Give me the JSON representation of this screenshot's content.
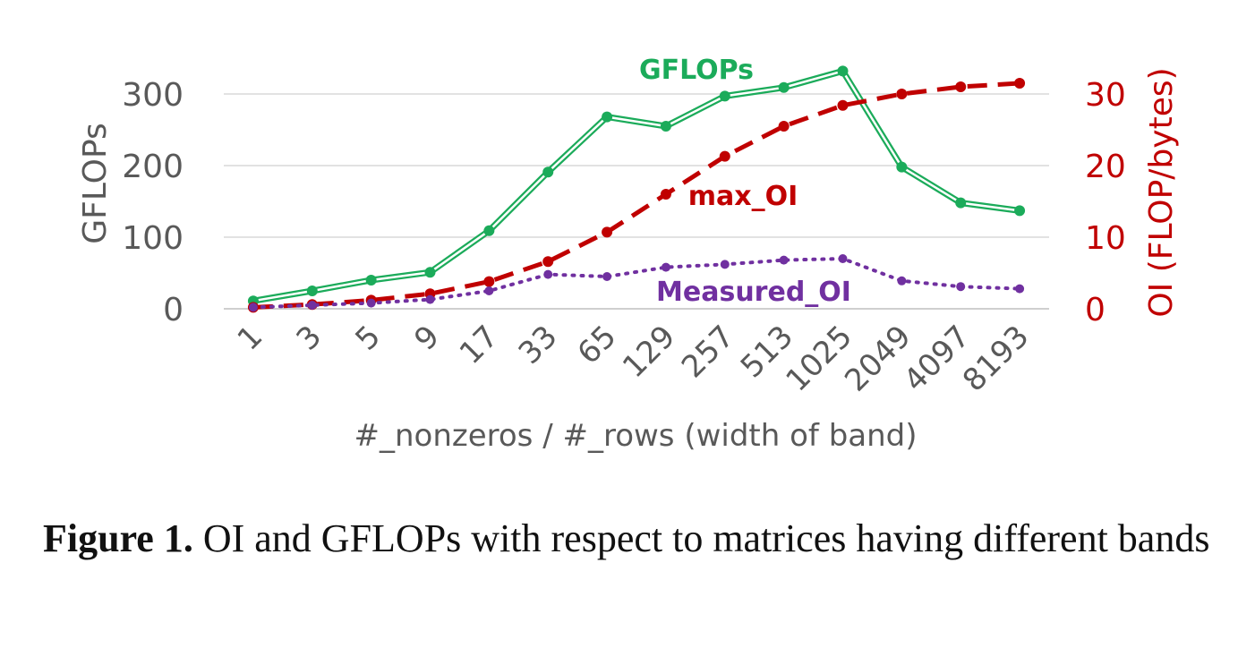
{
  "chart_data": {
    "type": "line",
    "categories": [
      "1",
      "3",
      "5",
      "9",
      "17",
      "33",
      "65",
      "129",
      "257",
      "513",
      "1025",
      "2049",
      "4097",
      "8193"
    ],
    "xlabel": "#_nonzeros / #_rows (width of band)",
    "ylabel": "GFLOPs",
    "y2label": "OI (FLOP/bytes)",
    "ylim": [
      0,
      300
    ],
    "y2lim": [
      0,
      30
    ],
    "yticks": [
      "0",
      "100",
      "200",
      "300"
    ],
    "y2ticks": [
      "0",
      "10",
      "20",
      "30"
    ],
    "grid": true,
    "legend": "inline labels",
    "series": [
      {
        "name": "GFLOPs",
        "axis": "left",
        "style": "double-solid",
        "color": "#1bab5a",
        "values": [
          11,
          25,
          40,
          51,
          109,
          191,
          268,
          255,
          297,
          309,
          332,
          198,
          148,
          137
        ]
      },
      {
        "name": "max_OI",
        "axis": "right",
        "style": "dashed",
        "color": "#c00000",
        "values": [
          0.2,
          0.6,
          1.2,
          2.1,
          3.8,
          6.6,
          10.7,
          16.0,
          21.3,
          25.5,
          28.4,
          30.0,
          31.0,
          31.5
        ]
      },
      {
        "name": "Measured_OI",
        "axis": "right",
        "style": "dotted",
        "color": "#7030a0",
        "values": [
          0.2,
          0.5,
          0.8,
          1.3,
          2.5,
          4.8,
          4.5,
          5.8,
          6.2,
          6.8,
          7.0,
          3.9,
          3.1,
          2.8
        ]
      }
    ]
  },
  "caption": {
    "label": "Figure 1.",
    "text": " OI and GFLOPs with respect to matrices having different bands"
  }
}
